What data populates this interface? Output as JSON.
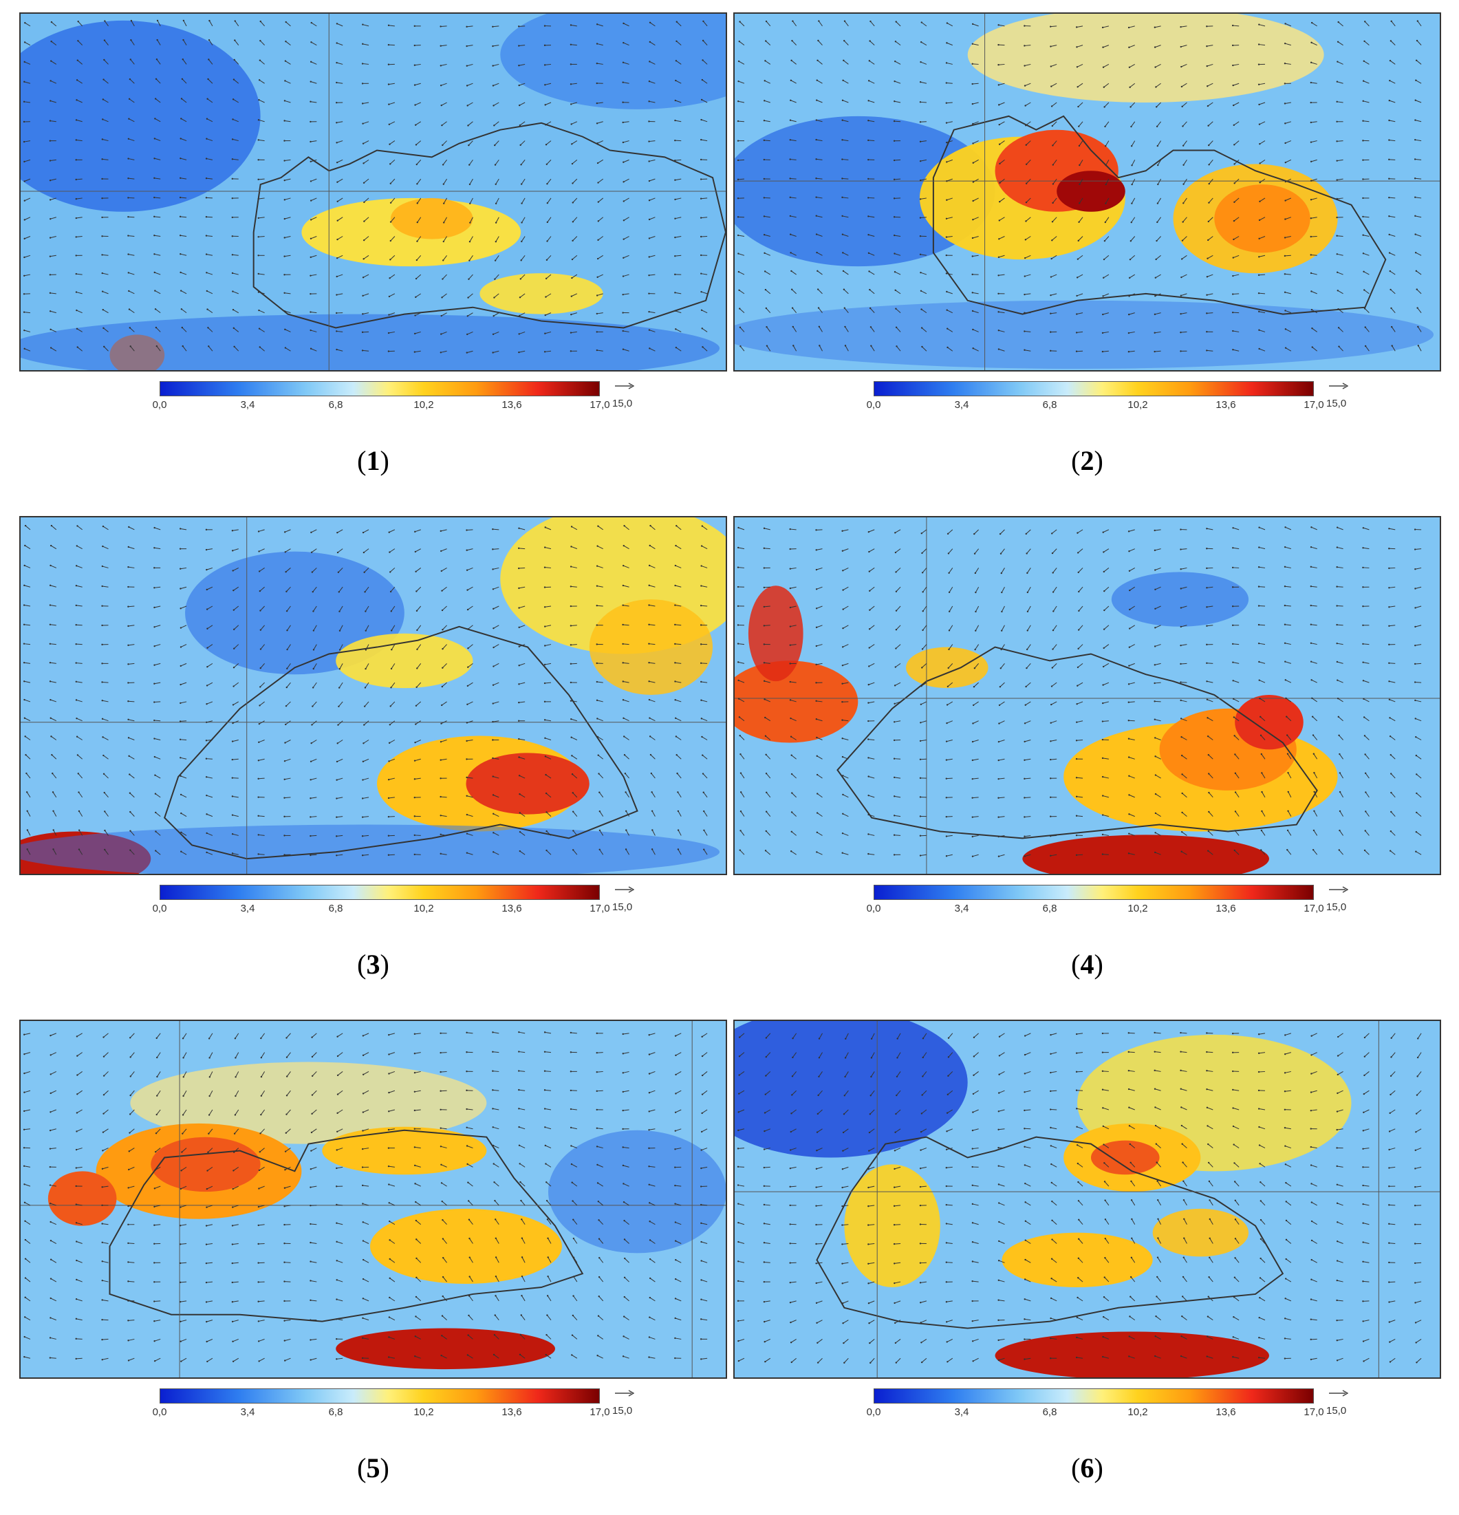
{
  "colorbar": {
    "ticks": [
      "0,0",
      "3,4",
      "6,8",
      "10,2",
      "13,6",
      "17,0"
    ],
    "min": 0.0,
    "max": 17.0,
    "colors": [
      "#0a1fd0",
      "#2f7ef0",
      "#7fc8f6",
      "#c9ecfb",
      "#fff07a",
      "#ffd21e",
      "#ff9b10",
      "#f0281a",
      "#7a0000"
    ]
  },
  "vector_reference": {
    "label": "15,0",
    "icon": "arrow-right-icon"
  },
  "panels": [
    {
      "id": "1",
      "label_open": "(",
      "label_num": "1",
      "label_close": ")"
    },
    {
      "id": "2",
      "label_open": "(",
      "label_num": "2",
      "label_close": ")"
    },
    {
      "id": "3",
      "label_open": "(",
      "label_num": "3",
      "label_close": ")"
    },
    {
      "id": "4",
      "label_open": "(",
      "label_num": "4",
      "label_close": ")"
    },
    {
      "id": "5",
      "label_open": "(",
      "label_num": "5",
      "label_close": ")"
    },
    {
      "id": "6",
      "label_open": "(",
      "label_num": "6",
      "label_close": ")"
    }
  ]
}
